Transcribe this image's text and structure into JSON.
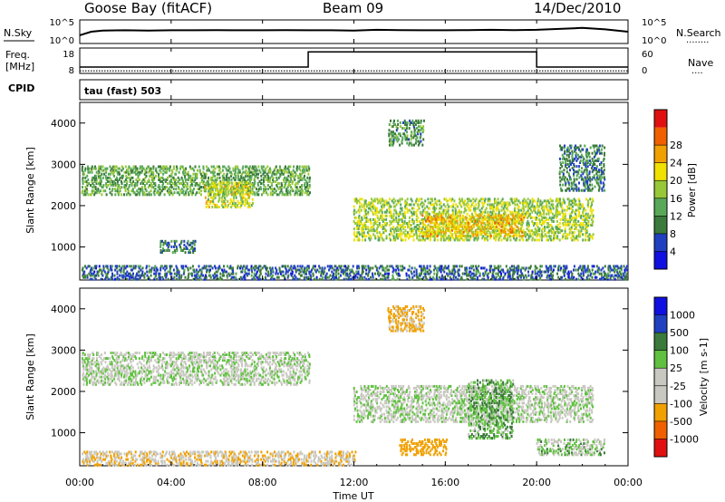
{
  "header": {
    "station": "Goose Bay (fitACF)",
    "beam": "Beam 09",
    "date": "14/Dec/2010"
  },
  "noise_panel": {
    "left_label": "N.Sky",
    "right_label": "N.Search",
    "right_legend_marks": "........",
    "left_ticks": [
      "10^5",
      "10^0"
    ],
    "right_ticks": [
      "10^5",
      "10^0"
    ]
  },
  "freq_panel": {
    "left_label_line1": "Freq.",
    "left_label_line2": "[MHz]",
    "right_label": "Nave",
    "right_legend_marks": "....",
    "left_ticks": [
      "18",
      "8"
    ],
    "right_ticks": [
      "60",
      "0"
    ]
  },
  "cpid": {
    "label": "CPID",
    "text": "tau (fast) 503"
  },
  "x_axis": {
    "label": "Time UT",
    "ticks": [
      "00:00",
      "04:00",
      "08:00",
      "12:00",
      "16:00",
      "20:00",
      "00:00"
    ]
  },
  "colors": {
    "power": [
      "#1010e0",
      "#2040c0",
      "#3a7a3a",
      "#58a858",
      "#98c838",
      "#f0e000",
      "#f0a000",
      "#f06000",
      "#e01010"
    ],
    "velocity": [
      "#e01010",
      "#f06000",
      "#f0a000",
      "#c8c8c0",
      "#c8c8c0",
      "#60c040",
      "#3a7a3a",
      "#2040c0",
      "#1010e0"
    ]
  },
  "chart_data": [
    {
      "type": "line",
      "panel": "noise",
      "title": "",
      "xlabel": "",
      "ylabel": "N.Sky",
      "x_range_hours": [
        0,
        24
      ],
      "series": [
        {
          "name": "N.Sky",
          "x": [
            0,
            0.5,
            1,
            2,
            3,
            4,
            5,
            6,
            7,
            8,
            9,
            10,
            11,
            12,
            13,
            14,
            15,
            16,
            17,
            18,
            19,
            20,
            21,
            22,
            23,
            24
          ],
          "values": [
            0.35,
            0.5,
            0.55,
            0.56,
            0.55,
            0.56,
            0.56,
            0.57,
            0.56,
            0.56,
            0.57,
            0.56,
            0.56,
            0.55,
            0.58,
            0.57,
            0.56,
            0.56,
            0.57,
            0.58,
            0.57,
            0.58,
            0.62,
            0.66,
            0.6,
            0.5
          ]
        }
      ]
    },
    {
      "type": "line",
      "panel": "frequency",
      "title": "",
      "xlabel": "",
      "ylabel": "Freq. [MHz]",
      "ylim": [
        8,
        18
      ],
      "x_range_hours": [
        0,
        24
      ],
      "series": [
        {
          "name": "Freq.",
          "x": [
            0,
            10,
            10,
            20,
            20,
            24
          ],
          "values": [
            10.5,
            10.5,
            16.5,
            16.5,
            10.5,
            10.5
          ]
        },
        {
          "name": "Nave",
          "x": [
            0,
            24
          ],
          "values": [
            9,
            9
          ]
        }
      ]
    },
    {
      "type": "heatmap",
      "panel": "power",
      "title": "",
      "xlabel": "",
      "ylabel": "Slant Range [km]",
      "yticks": [
        1000,
        2000,
        3000,
        4000
      ],
      "ylim": [
        200,
        4500
      ],
      "x_range_hours": [
        0,
        24
      ],
      "colorbar": {
        "label": "Power [dB]",
        "ticks": [
          "4",
          "8",
          "12",
          "16",
          "20",
          "24",
          "28"
        ]
      },
      "regions": [
        {
          "t0": 0.0,
          "t1": 10.0,
          "r0": 2300,
          "r1": 3000,
          "value": 14
        },
        {
          "t0": 5.5,
          "t1": 7.5,
          "r0": 2000,
          "r1": 2600,
          "value": 20
        },
        {
          "t0": 0.0,
          "t1": 24.0,
          "r0": 250,
          "r1": 600,
          "value": 8
        },
        {
          "t0": 3.5,
          "t1": 5.0,
          "r0": 900,
          "r1": 1200,
          "value": 10
        },
        {
          "t0": 12.0,
          "t1": 22.5,
          "r0": 1200,
          "r1": 2200,
          "value": 18
        },
        {
          "t0": 15.0,
          "t1": 19.5,
          "r0": 1300,
          "r1": 1800,
          "value": 24
        },
        {
          "t0": 13.5,
          "t1": 15.0,
          "r0": 3500,
          "r1": 4100,
          "value": 12
        },
        {
          "t0": 21.0,
          "t1": 23.0,
          "r0": 2400,
          "r1": 3500,
          "value": 10
        }
      ]
    },
    {
      "type": "heatmap",
      "panel": "velocity",
      "title": "",
      "xlabel": "",
      "ylabel": "Slant Range [km]",
      "yticks": [
        1000,
        2000,
        3000,
        4000
      ],
      "ylim": [
        200,
        4500
      ],
      "x_range_hours": [
        0,
        24
      ],
      "colorbar": {
        "label": "Velocity [m s-1]",
        "ticks": [
          "-1000",
          "-500",
          "-100",
          "-25",
          "25",
          "100",
          "500",
          "1000"
        ]
      },
      "regions": [
        {
          "t0": 0.0,
          "t1": 10.0,
          "r0": 2200,
          "r1": 3000,
          "value": 0
        },
        {
          "t0": 0.0,
          "t1": 12.0,
          "r0": 250,
          "r1": 600,
          "value": -80
        },
        {
          "t0": 12.0,
          "t1": 22.5,
          "r0": 1300,
          "r1": 2200,
          "value": 0
        },
        {
          "t0": 14.0,
          "t1": 16.0,
          "r0": 500,
          "r1": 900,
          "value": -200
        },
        {
          "t0": 17.0,
          "t1": 19.0,
          "r0": 900,
          "r1": 2300,
          "value": 80
        },
        {
          "t0": 13.5,
          "t1": 15.0,
          "r0": 3500,
          "r1": 4100,
          "value": -150
        },
        {
          "t0": 20.0,
          "t1": 23.0,
          "r0": 500,
          "r1": 900,
          "value": 30
        }
      ]
    }
  ]
}
